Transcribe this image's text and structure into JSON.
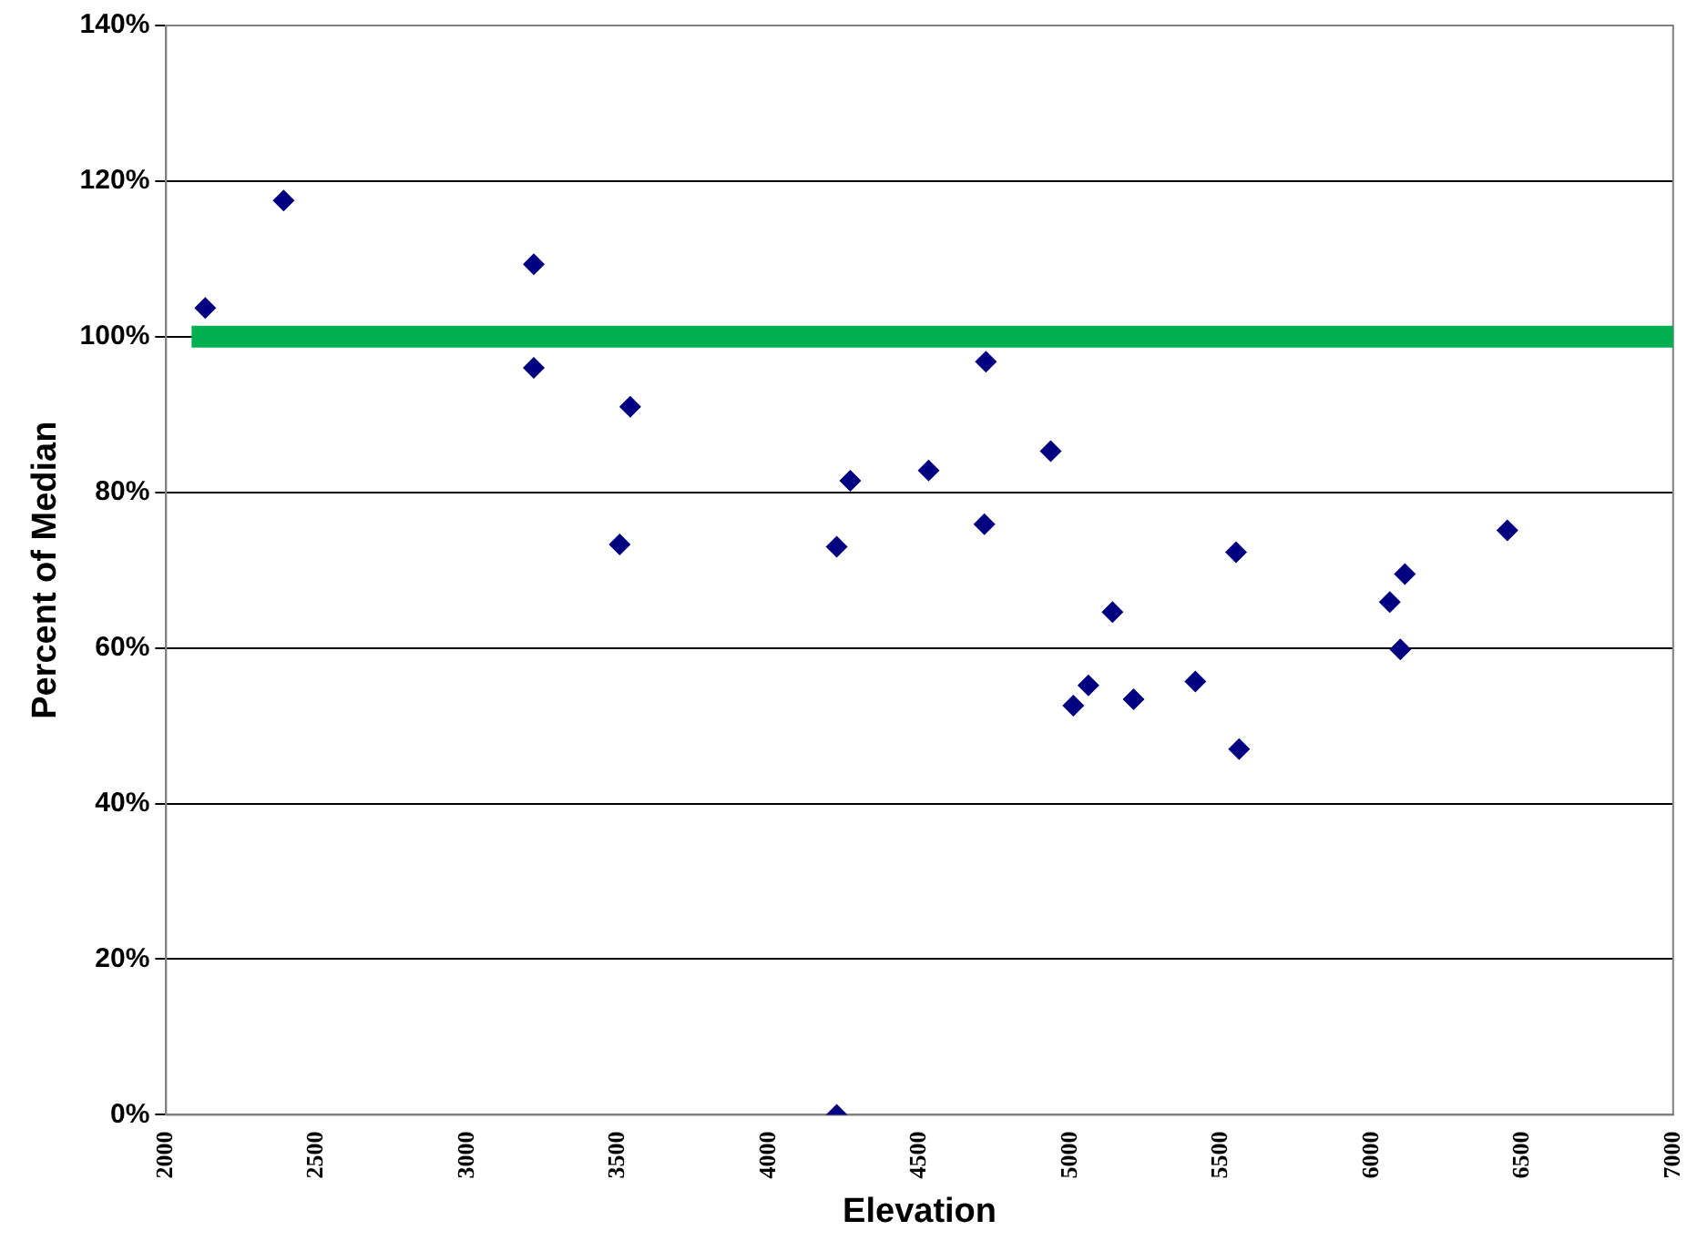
{
  "chart_data": {
    "type": "scatter",
    "xlabel": "Elevation",
    "ylabel": "Percent of Median",
    "x": [
      2130,
      2390,
      3220,
      3220,
      3540,
      3505,
      4225,
      4225,
      4270,
      4530,
      4720,
      4715,
      4935,
      5140,
      5010,
      5060,
      5210,
      5415,
      5550,
      5560,
      6060,
      6110,
      6095,
      6450
    ],
    "series": [
      {
        "color": "#000080",
        "values": [
          103.7,
          117.5,
          109.3,
          96,
          91,
          73.3,
          0,
          73,
          81.5,
          82.8,
          96.8,
          75.9,
          85.3,
          64.6,
          52.6,
          55.2,
          53.4,
          55.7,
          72.3,
          47,
          65.9,
          69.5,
          59.8,
          75.1
        ]
      }
    ],
    "marker": "diamond",
    "grid": "y",
    "legend": false,
    "xlim": [
      2000,
      7000
    ],
    "xticks": [
      2000,
      2500,
      3000,
      3500,
      4000,
      4500,
      5000,
      5500,
      6000,
      6500,
      7000
    ],
    "ylim": [
      0,
      140
    ],
    "yticks": [
      {
        "value": 0,
        "label": "0%"
      },
      {
        "value": 20,
        "label": "20%"
      },
      {
        "value": 40,
        "label": "40%"
      },
      {
        "value": 60,
        "label": "60%"
      },
      {
        "value": 80,
        "label": "80%"
      },
      {
        "value": 100,
        "label": "100%"
      },
      {
        "value": 120,
        "label": "120%"
      },
      {
        "value": 140,
        "label": "140%"
      }
    ],
    "ref_lines": [
      {
        "axis": "y",
        "value": 100,
        "color": "#00b050"
      }
    ]
  }
}
